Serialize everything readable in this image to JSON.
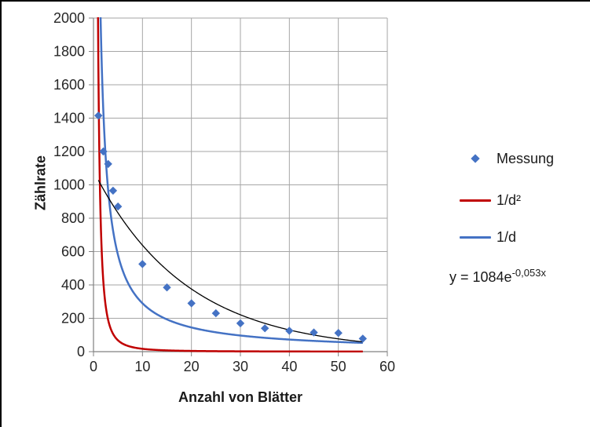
{
  "chart_data": {
    "type": "scatter",
    "title": "",
    "xlabel": "Anzahl von Blätter",
    "ylabel": "Zählrate",
    "xlim": [
      0,
      60
    ],
    "ylim": [
      0,
      2000
    ],
    "xticks": [
      0,
      10,
      20,
      30,
      40,
      50,
      60
    ],
    "yticks": [
      0,
      200,
      400,
      600,
      800,
      1000,
      1200,
      1400,
      1600,
      1800,
      2000
    ],
    "grid": true,
    "legend_position": "right",
    "series": [
      {
        "name": "Messung",
        "kind": "scatter",
        "marker": "diamond",
        "color": "#4472C4",
        "x": [
          1,
          2,
          3,
          4,
          5,
          10,
          15,
          20,
          25,
          30,
          35,
          40,
          45,
          50,
          55
        ],
        "y": [
          1415,
          1200,
          1125,
          965,
          870,
          525,
          385,
          290,
          230,
          170,
          140,
          125,
          115,
          112,
          78
        ]
      },
      {
        "name": "1/d²",
        "kind": "curve",
        "formula": "k/x^2",
        "k": 1700,
        "color": "#C00000",
        "x_range": [
          0.9,
          55
        ]
      },
      {
        "name": "1/d",
        "kind": "curve",
        "formula": "k/x",
        "k": 2900,
        "color": "#4472C4",
        "x_range": [
          1,
          55
        ]
      },
      {
        "kind": "curve",
        "formula": "a*exp(b*x)",
        "a": 1084,
        "b": -0.053,
        "color": "#000000",
        "x_range": [
          1,
          55
        ]
      }
    ],
    "annotation": {
      "base": "y = 1084e",
      "exponent": "-0,053x"
    }
  }
}
